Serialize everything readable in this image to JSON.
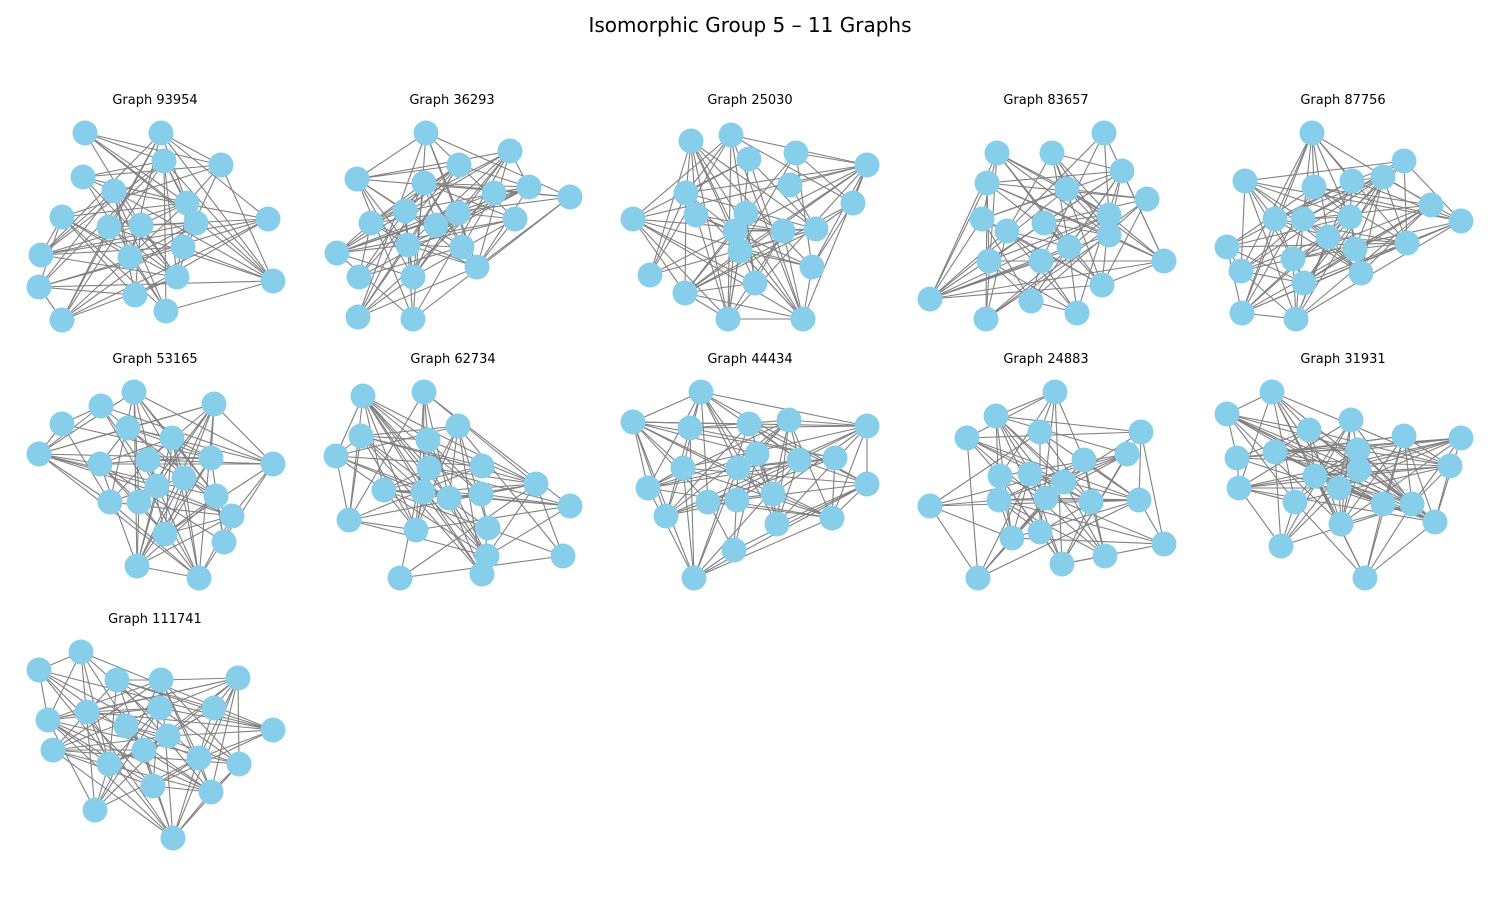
{
  "title": "Isomorphic Group 5 – 11 Graphs",
  "colors": {
    "node": "#87ceeb",
    "edge": "#808080"
  },
  "graphs": [
    {
      "label": "Graph 93954"
    },
    {
      "label": "Graph 36293"
    },
    {
      "label": "Graph 25030"
    },
    {
      "label": "Graph 83657"
    },
    {
      "label": "Graph 87756"
    },
    {
      "label": "Graph 53165"
    },
    {
      "label": "Graph 62734"
    },
    {
      "label": "Graph 44434"
    },
    {
      "label": "Graph 24883"
    },
    {
      "label": "Graph 31931"
    },
    {
      "label": "Graph 111741"
    }
  ]
}
